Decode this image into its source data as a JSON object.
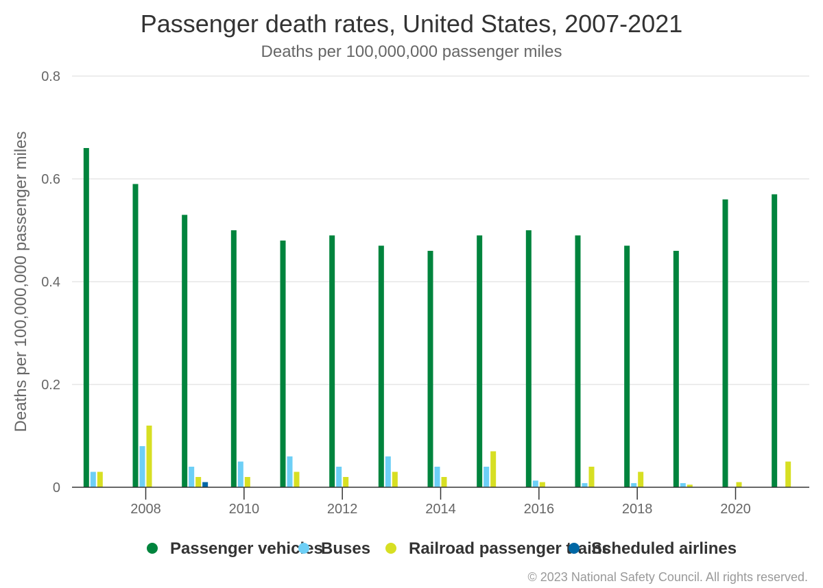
{
  "chart_data": {
    "type": "bar",
    "title": "Passenger death rates, United States, 2007-2021",
    "subtitle": "Deaths per 100,000,000 passenger miles",
    "ylabel": "Deaths per 100,000,000 passenger miles",
    "xlabel": "",
    "ylim": [
      0,
      0.8
    ],
    "yticks": [
      "0",
      "0.2",
      "0.4",
      "0.6",
      "0.8"
    ],
    "xticks": [
      "2008",
      "2010",
      "2012",
      "2014",
      "2016",
      "2018",
      "2020"
    ],
    "x": [
      2007,
      2008,
      2009,
      2010,
      2011,
      2012,
      2013,
      2014,
      2015,
      2016,
      2017,
      2018,
      2019,
      2020,
      2021
    ],
    "grid": true,
    "legend_position": "bottom",
    "series": [
      {
        "name": "Passenger vehicles",
        "color": "#00843d",
        "values": [
          0.66,
          0.59,
          0.53,
          0.5,
          0.48,
          0.49,
          0.47,
          0.46,
          0.49,
          0.5,
          0.49,
          0.47,
          0.46,
          0.56,
          0.57
        ]
      },
      {
        "name": "Buses",
        "color": "#6dcff6",
        "values": [
          0.03,
          0.08,
          0.04,
          0.05,
          0.06,
          0.04,
          0.06,
          0.04,
          0.04,
          0.013,
          0.008,
          0.008,
          0.008,
          0,
          0
        ]
      },
      {
        "name": "Railroad passenger trains",
        "color": "#d7df23",
        "values": [
          0.03,
          0.12,
          0.02,
          0.02,
          0.03,
          0.02,
          0.03,
          0.02,
          0.07,
          0.01,
          0.04,
          0.03,
          0.005,
          0.01,
          0.05
        ]
      },
      {
        "name": "Scheduled airlines",
        "color": "#0067a5",
        "values": [
          0,
          0,
          0.01,
          0,
          0,
          0,
          0,
          0,
          0,
          0,
          0,
          0,
          0,
          0,
          0
        ]
      }
    ],
    "credit": "© 2023 National Safety Council. All rights reserved."
  }
}
